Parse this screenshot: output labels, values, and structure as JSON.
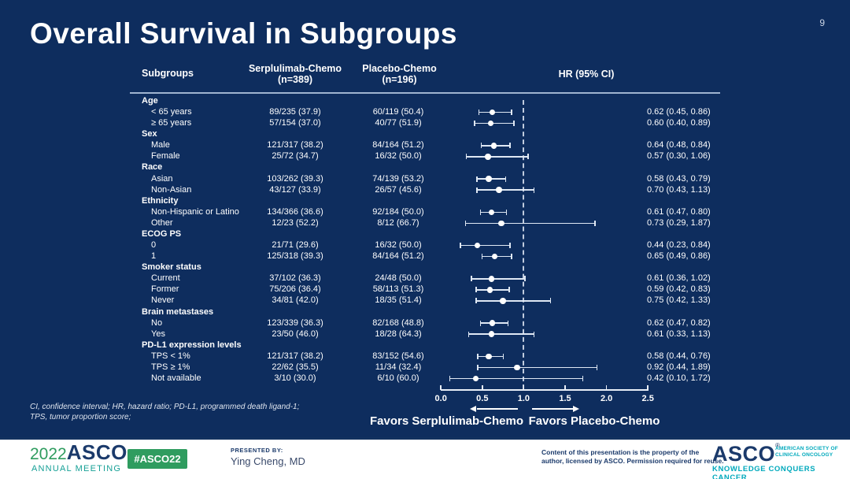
{
  "page_number": "9",
  "title": "Overall Survival in Subgroups",
  "colors": {
    "background_navy": "#0e2d5e",
    "text_white": "#ffffff",
    "footer_green": "#2f9c5f",
    "footer_teal": "#00a9bc",
    "footer_navy": "#1b3a6b"
  },
  "table": {
    "headers": {
      "subgroups": "Subgroups",
      "arm1_line1": "Serplulimab-Chemo",
      "arm1_line2": "(n=389)",
      "arm2_line1": "Placebo-Chemo",
      "arm2_line2": "(n=196)",
      "hr": "HR (95% CI)"
    }
  },
  "chart_data": {
    "type": "forest",
    "title": "Overall Survival in Subgroups",
    "axis": {
      "min": 0.0,
      "max": 2.5,
      "tick_values": [
        0.0,
        0.5,
        1.0,
        1.5,
        2.0,
        2.5
      ],
      "tick_labels": [
        "0.0",
        "0.5",
        "1.0",
        "1.5",
        "2.0",
        "2.5"
      ],
      "reference_line": 1.0
    },
    "favors_left": "Favors Serplulimab-Chemo",
    "favors_right": "Favors Placebo-Chemo",
    "rows": [
      {
        "type": "group",
        "label": "Age"
      },
      {
        "type": "item",
        "label": "< 65 years",
        "arm1": "89/235 (37.9)",
        "arm2": "60/119 (50.4)",
        "hr_text": "0.62 (0.45, 0.86)",
        "hr": 0.62,
        "lo": 0.45,
        "hi": 0.86
      },
      {
        "type": "item",
        "label": "≥ 65 years",
        "arm1": "57/154 (37.0)",
        "arm2": "40/77 (51.9)",
        "hr_text": "0.60 (0.40, 0.89)",
        "hr": 0.6,
        "lo": 0.4,
        "hi": 0.89
      },
      {
        "type": "group",
        "label": "Sex"
      },
      {
        "type": "item",
        "label": "Male",
        "arm1": "121/317 (38.2)",
        "arm2": "84/164 (51.2)",
        "hr_text": "0.64 (0.48, 0.84)",
        "hr": 0.64,
        "lo": 0.48,
        "hi": 0.84
      },
      {
        "type": "item",
        "label": "Female",
        "arm1": "25/72 (34.7)",
        "arm2": "16/32 (50.0)",
        "hr_text": "0.57 (0.30, 1.06)",
        "hr": 0.57,
        "lo": 0.3,
        "hi": 1.06
      },
      {
        "type": "group",
        "label": "Race"
      },
      {
        "type": "item",
        "label": "Asian",
        "arm1": "103/262 (39.3)",
        "arm2": "74/139 (53.2)",
        "hr_text": "0.58 (0.43, 0.79)",
        "hr": 0.58,
        "lo": 0.43,
        "hi": 0.79
      },
      {
        "type": "item",
        "label": "Non-Asian",
        "arm1": "43/127 (33.9)",
        "arm2": "26/57 (45.6)",
        "hr_text": "0.70 (0.43, 1.13)",
        "hr": 0.7,
        "lo": 0.43,
        "hi": 1.13
      },
      {
        "type": "group",
        "label": "Ethnicity"
      },
      {
        "type": "item",
        "label": "Non-Hispanic or Latino",
        "arm1": "134/366 (36.6)",
        "arm2": "92/184 (50.0)",
        "hr_text": "0.61 (0.47, 0.80)",
        "hr": 0.61,
        "lo": 0.47,
        "hi": 0.8
      },
      {
        "type": "item",
        "label": "Other",
        "arm1": "12/23 (52.2)",
        "arm2": "8/12 (66.7)",
        "hr_text": "0.73 (0.29, 1.87)",
        "hr": 0.73,
        "lo": 0.29,
        "hi": 1.87
      },
      {
        "type": "group",
        "label": "ECOG PS"
      },
      {
        "type": "item",
        "label": "0",
        "arm1": "21/71 (29.6)",
        "arm2": "16/32 (50.0)",
        "hr_text": "0.44 (0.23, 0.84)",
        "hr": 0.44,
        "lo": 0.23,
        "hi": 0.84
      },
      {
        "type": "item",
        "label": "1",
        "arm1": "125/318 (39.3)",
        "arm2": "84/164 (51.2)",
        "hr_text": "0.65 (0.49, 0.86)",
        "hr": 0.65,
        "lo": 0.49,
        "hi": 0.86
      },
      {
        "type": "group",
        "label": "Smoker status"
      },
      {
        "type": "item",
        "label": "Current",
        "arm1": "37/102 (36.3)",
        "arm2": "24/48 (50.0)",
        "hr_text": "0.61 (0.36, 1.02)",
        "hr": 0.61,
        "lo": 0.36,
        "hi": 1.02
      },
      {
        "type": "item",
        "label": "Former",
        "arm1": "75/206 (36.4)",
        "arm2": "58/113 (51.3)",
        "hr_text": "0.59 (0.42, 0.83)",
        "hr": 0.59,
        "lo": 0.42,
        "hi": 0.83
      },
      {
        "type": "item",
        "label": "Never",
        "arm1": "34/81 (42.0)",
        "arm2": "18/35 (51.4)",
        "hr_text": "0.75 (0.42, 1.33)",
        "hr": 0.75,
        "lo": 0.42,
        "hi": 1.33
      },
      {
        "type": "group",
        "label": "Brain metastases"
      },
      {
        "type": "item",
        "label": "No",
        "arm1": "123/339 (36.3)",
        "arm2": "82/168 (48.8)",
        "hr_text": "0.62 (0.47, 0.82)",
        "hr": 0.62,
        "lo": 0.47,
        "hi": 0.82
      },
      {
        "type": "item",
        "label": "Yes",
        "arm1": "23/50 (46.0)",
        "arm2": "18/28 (64.3)",
        "hr_text": "0.61 (0.33, 1.13)",
        "hr": 0.61,
        "lo": 0.33,
        "hi": 1.13
      },
      {
        "type": "group",
        "label": "PD-L1 expression levels"
      },
      {
        "type": "item",
        "label": "TPS < 1%",
        "arm1": "121/317 (38.2)",
        "arm2": "83/152 (54.6)",
        "hr_text": "0.58 (0.44, 0.76)",
        "hr": 0.58,
        "lo": 0.44,
        "hi": 0.76
      },
      {
        "type": "item",
        "label": "TPS ≥ 1%",
        "arm1": "22/62 (35.5)",
        "arm2": "11/34 (32.4)",
        "hr_text": "0.92 (0.44, 1.89)",
        "hr": 0.92,
        "lo": 0.44,
        "hi": 1.89
      },
      {
        "type": "item",
        "label": "Not available",
        "arm1": "3/10 (30.0)",
        "arm2": "6/10 (60.0)",
        "hr_text": "0.42 (0.10, 1.72)",
        "hr": 0.42,
        "lo": 0.1,
        "hi": 1.72
      }
    ]
  },
  "footnote": {
    "line1": "CI, confidence interval; HR, hazard ratio; PD-L1, programmed death ligand-1;",
    "line2": "TPS, tumor proportion score;"
  },
  "footer": {
    "logo_year": "2022",
    "logo_asco": "ASCO",
    "logo_reg": "®",
    "logo_sub": "ANNUAL MEETING",
    "badge": "#ASCO22",
    "presented_label": "PRESENTED BY:",
    "presenter": "Ying Cheng, MD",
    "disclaimer_line1": "Content of this presentation is the property of the",
    "disclaimer_line2": "author, licensed by ASCO. Permission required for reuse.",
    "right_logo_asco": "ASCO",
    "right_logo_reg": "®",
    "society_line1": "AMERICAN SOCIETY OF",
    "society_line2": "CLINICAL ONCOLOGY",
    "tagline": "KNOWLEDGE CONQUERS CANCER"
  }
}
